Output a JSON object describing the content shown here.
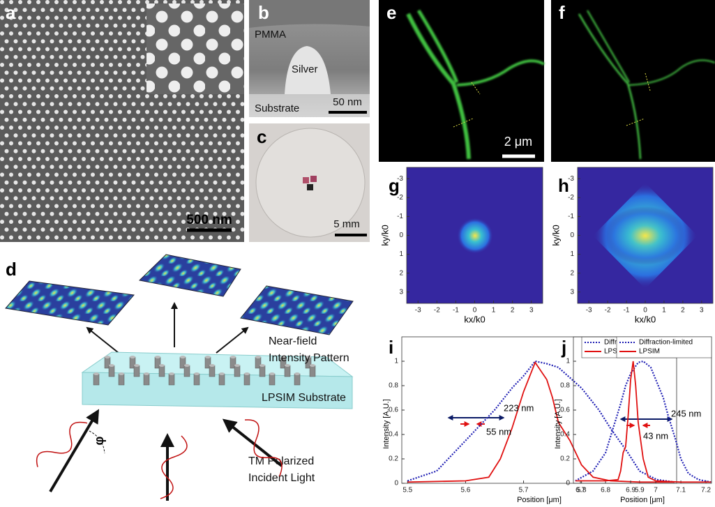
{
  "figure": {
    "panels": {
      "a": {
        "label": "a",
        "scale_bar": "500 nm"
      },
      "b": {
        "label": "b",
        "layers": [
          "PMMA",
          "Silver",
          "Substrate"
        ],
        "scale_bar": "50 nm"
      },
      "c": {
        "label": "c",
        "scale_bar": "5 mm"
      },
      "d": {
        "label": "d",
        "texts": [
          "Near-field",
          "Intensity Pattern",
          "LPSIM Substrate",
          "TM Polarized",
          "Incident Light",
          "φ"
        ]
      },
      "e": {
        "label": "e",
        "scale_bar": "2 μm"
      },
      "f": {
        "label": "f"
      }
    }
  },
  "chart_data": [
    {
      "type": "image",
      "label": "g",
      "xlabel": "kx/k0",
      "ylabel": "ky/k0",
      "xlim": [
        -3.6,
        3.6
      ],
      "ylim": [
        -3.6,
        3.6
      ],
      "yreverse": true,
      "xticks": [
        -3,
        -2,
        -1,
        0,
        1,
        2,
        3
      ],
      "yticks": [
        -3,
        -2,
        -1,
        0,
        1,
        2,
        3
      ]
    },
    {
      "type": "image",
      "label": "h",
      "xlabel": "kx/k0",
      "ylabel": "ky/k0",
      "xlim": [
        -3.6,
        3.6
      ],
      "ylim": [
        -3.6,
        3.6
      ],
      "yreverse": true,
      "xticks": [
        -3,
        -2,
        -1,
        0,
        1,
        2,
        3
      ],
      "yticks": [
        -3,
        -2,
        -1,
        0,
        1,
        2,
        3
      ]
    },
    {
      "type": "line",
      "label": "i",
      "xlabel": "Position [μm]",
      "ylabel": "Intensity [A.U.]",
      "legend": "upper right",
      "xlim": [
        5.49,
        5.964
      ],
      "ylim": [
        0,
        1.2
      ],
      "xticks": [
        5.5,
        5.6,
        5.7,
        5.8,
        5.9
      ],
      "yticks": [
        0,
        0.2,
        0.4,
        0.6,
        0.8,
        1
      ],
      "annotations": [
        "223 nm",
        "55 nm"
      ],
      "series": [
        {
          "name": "Diffraction-limited",
          "color": "#1f1fb4",
          "style": "dotted",
          "x": [
            5.5,
            5.55,
            5.6,
            5.65,
            5.68,
            5.7,
            5.72,
            5.74,
            5.76,
            5.8,
            5.83,
            5.85,
            5.88,
            5.9,
            5.93,
            5.96
          ],
          "values": [
            0.02,
            0.1,
            0.35,
            0.6,
            0.78,
            0.88,
            1.0,
            0.98,
            0.95,
            0.78,
            0.6,
            0.45,
            0.25,
            0.1,
            0.03,
            0.01
          ]
        },
        {
          "name": "LPSIM",
          "color": "#e01010",
          "style": "solid",
          "x": [
            5.5,
            5.6,
            5.64,
            5.66,
            5.68,
            5.7,
            5.72,
            5.74,
            5.75,
            5.76,
            5.78,
            5.8,
            5.82,
            5.85,
            5.9,
            5.96
          ],
          "values": [
            0.01,
            0.02,
            0.05,
            0.2,
            0.45,
            0.75,
            0.99,
            0.85,
            0.7,
            0.5,
            0.35,
            0.15,
            0.05,
            0.02,
            0.01,
            0.01
          ]
        }
      ]
    },
    {
      "type": "line",
      "label": "j",
      "xlabel": "Position [μm]",
      "ylabel": "Intensity [A.U.]",
      "legend": "upper right",
      "xlim": [
        6.672,
        7.222
      ],
      "ylim": [
        0,
        1.2
      ],
      "xticks": [
        6.7,
        6.8,
        6.9,
        7,
        7.1,
        7.2
      ],
      "yticks": [
        0,
        0.2,
        0.4,
        0.6,
        0.8,
        1
      ],
      "annotations": [
        "245 nm",
        "43 nm"
      ],
      "series": [
        {
          "name": "Diffraction-limited",
          "color": "#1f1fb4",
          "style": "dotted",
          "x": [
            6.68,
            6.75,
            6.8,
            6.83,
            6.86,
            6.88,
            6.9,
            6.93,
            6.95,
            6.98,
            7.0,
            7.03,
            7.05,
            7.08,
            7.1,
            7.13,
            7.17,
            7.22
          ],
          "values": [
            0.02,
            0.1,
            0.25,
            0.45,
            0.65,
            0.8,
            0.9,
            0.99,
            1.0,
            0.95,
            0.85,
            0.7,
            0.55,
            0.35,
            0.2,
            0.08,
            0.03,
            0.01
          ]
        },
        {
          "name": "LPSIM",
          "color": "#e01010",
          "style": "solid",
          "x": [
            6.68,
            6.8,
            6.85,
            6.86,
            6.87,
            6.88,
            6.89,
            6.9,
            6.91,
            6.92,
            6.93,
            6.95,
            6.97,
            7.0,
            7.1,
            7.22
          ],
          "values": [
            0.02,
            0.02,
            0.03,
            0.1,
            0.25,
            0.3,
            0.55,
            0.85,
            1.0,
            0.8,
            0.5,
            0.2,
            0.05,
            0.02,
            0.01,
            0.01
          ]
        }
      ]
    }
  ]
}
